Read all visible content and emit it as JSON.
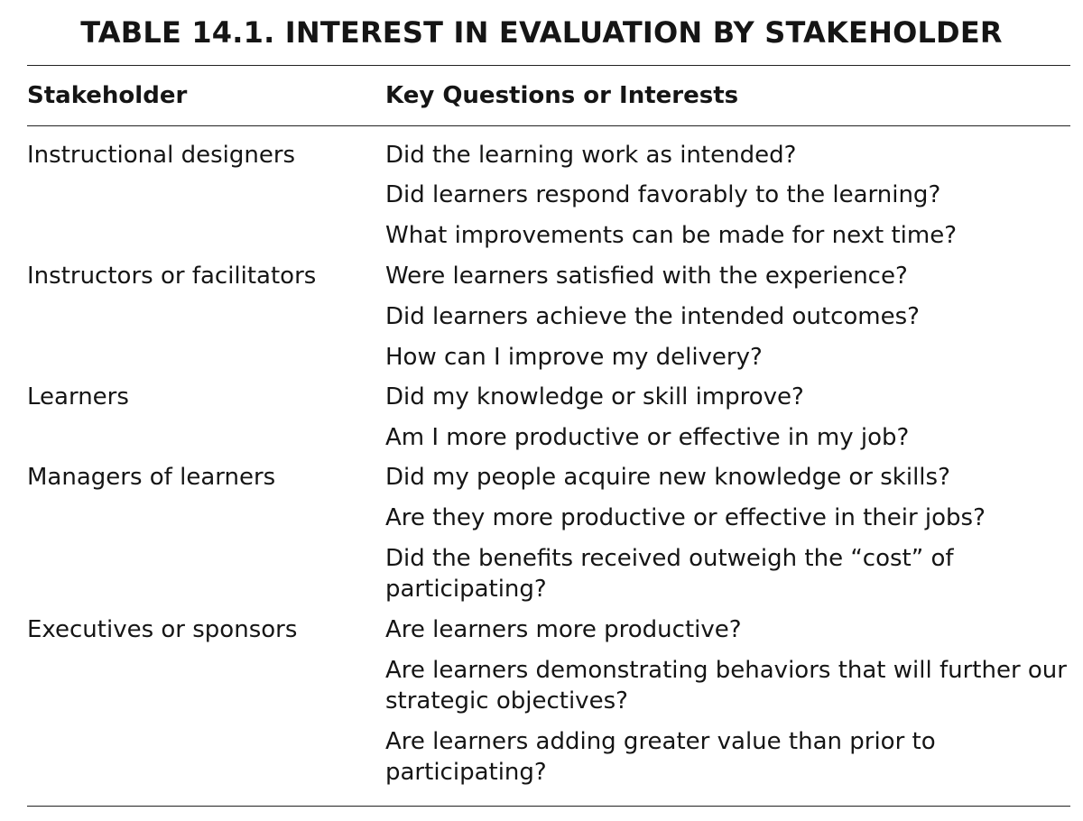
{
  "title": "TABLE 14.1.  INTEREST IN EVALUATION BY STAKEHOLDER",
  "headers": {
    "stakeholder": "Stakeholder",
    "questions": "Key Questions or Interests"
  },
  "rows": [
    {
      "stakeholder": "Instructional designers",
      "questions": [
        "Did the learning work as intended?",
        "Did learners respond favorably to the learning?",
        "What improvements can be made for next time?"
      ]
    },
    {
      "stakeholder": "Instructors or facilitators",
      "questions": [
        "Were learners satisfied with the experience?",
        "Did learners achieve the intended outcomes?",
        "How can I improve my delivery?"
      ]
    },
    {
      "stakeholder": "Learners",
      "questions": [
        "Did my knowledge or skill improve?",
        "Am I more productive or effective in my job?"
      ]
    },
    {
      "stakeholder": "Managers of learners",
      "questions": [
        "Did my people acquire new knowledge or skills?",
        "Are they more productive or effective in their jobs?",
        "Did the benefits received outweigh the “cost” of participating?"
      ]
    },
    {
      "stakeholder": "Executives or sponsors",
      "questions": [
        "Are learners more productive?",
        "Are learners demonstrating behaviors that will further our strategic objectives?",
        "Are learners adding greater value than prior to participating?"
      ]
    }
  ]
}
